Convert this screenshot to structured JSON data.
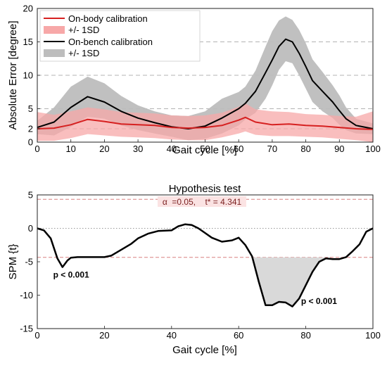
{
  "chart_data": [
    {
      "type": "line",
      "xlabel": "Gait cycle [%]",
      "ylabel": "Absolute Error [degree]",
      "xlim": [
        0,
        100
      ],
      "ylim": [
        0,
        20
      ],
      "x_ticks": [
        "0",
        "10",
        "20",
        "30",
        "40",
        "50",
        "60",
        "70",
        "80",
        "90",
        "100"
      ],
      "y_ticks": [
        "0",
        "2",
        "5",
        "10",
        "15",
        "20"
      ],
      "dashed_gridlines_y": [
        2,
        5,
        10,
        15
      ],
      "legend_placement": "top-left",
      "legend": [
        {
          "label": "On-body calibration",
          "kind": "line",
          "color": "#d62020"
        },
        {
          "label": "+/- 1SD",
          "kind": "patch",
          "color": "#f7a8a8"
        },
        {
          "label": "On-bench calibration",
          "kind": "line",
          "color": "#000000"
        },
        {
          "label": "+/- 1SD",
          "kind": "patch",
          "color": "#bdbdbd"
        }
      ],
      "series": [
        {
          "name": "On-bench calibration",
          "color": "#000000",
          "band_color": "#bdbdbd",
          "x": [
            0,
            5,
            10,
            15,
            20,
            25,
            30,
            35,
            40,
            45,
            50,
            55,
            60,
            62,
            65,
            68,
            70,
            72,
            74,
            76,
            78,
            80,
            82,
            85,
            88,
            90,
            92,
            95,
            100
          ],
          "mean": [
            2.2,
            3.0,
            5.2,
            6.8,
            6.0,
            4.6,
            3.6,
            2.9,
            2.3,
            2.0,
            2.4,
            3.6,
            5.0,
            5.8,
            7.6,
            10.4,
            12.3,
            14.3,
            15.4,
            15.0,
            13.3,
            11.3,
            9.2,
            7.6,
            6.0,
            4.7,
            3.5,
            2.5,
            2.0
          ],
          "upper": [
            3.2,
            5.2,
            8.3,
            9.8,
            8.8,
            6.9,
            5.5,
            4.6,
            4.0,
            3.9,
            4.6,
            6.5,
            7.5,
            8.3,
            10.7,
            14.3,
            16.6,
            18.2,
            18.8,
            18.3,
            16.8,
            14.8,
            12.4,
            10.5,
            8.5,
            7.0,
            5.2,
            3.5,
            2.8
          ],
          "lower": [
            1.2,
            1.0,
            2.3,
            3.8,
            3.5,
            2.5,
            1.8,
            1.3,
            0.8,
            0.3,
            0.5,
            1.3,
            2.5,
            3.4,
            4.4,
            6.5,
            8.5,
            10.8,
            12.1,
            11.8,
            10.0,
            8.0,
            6.0,
            4.6,
            3.6,
            2.6,
            1.8,
            1.3,
            1.2
          ]
        },
        {
          "name": "On-body calibration",
          "color": "#d62020",
          "band_color": "#f7a8a8",
          "x": [
            0,
            5,
            10,
            15,
            20,
            25,
            30,
            35,
            40,
            45,
            50,
            55,
            60,
            62,
            65,
            70,
            75,
            80,
            85,
            90,
            95,
            100
          ],
          "mean": [
            2.0,
            2.1,
            2.6,
            3.4,
            3.1,
            2.7,
            2.6,
            2.5,
            2.2,
            2.1,
            2.2,
            2.5,
            3.3,
            3.7,
            3.0,
            2.6,
            2.7,
            2.5,
            2.4,
            2.2,
            2.0,
            1.9
          ],
          "upper": [
            4.5,
            4.1,
            4.6,
            5.2,
            4.9,
            4.5,
            4.4,
            4.3,
            4.0,
            3.9,
            4.0,
            4.4,
            5.3,
            5.8,
            4.9,
            4.6,
            4.5,
            4.2,
            4.1,
            3.9,
            3.8,
            4.6
          ],
          "lower": [
            0.2,
            0.2,
            0.6,
            1.2,
            1.0,
            0.8,
            0.7,
            0.6,
            0.4,
            0.3,
            0.3,
            0.7,
            1.3,
            1.6,
            1.1,
            0.9,
            0.9,
            0.8,
            0.7,
            0.5,
            0.3,
            0.0
          ]
        }
      ]
    },
    {
      "type": "line",
      "title": "Hypothesis test",
      "annotation": "α  =0.05,    t* = 4.341",
      "threshold": 4.341,
      "xlabel": "Gait cycle [%]",
      "ylabel": "SPM {t}",
      "xlim": [
        0,
        100
      ],
      "ylim": [
        -15,
        5
      ],
      "x_ticks": [
        "0",
        "20",
        "40",
        "60",
        "80",
        "100"
      ],
      "y_ticks": [
        "5",
        "0",
        "-5",
        "-10",
        "-15"
      ],
      "zero_line": "dotted",
      "significance_labels": [
        {
          "text": "p < 0.001",
          "x": 8,
          "y": -6.3
        },
        {
          "text": "p < 0.001",
          "x": 81,
          "y": -10.9
        }
      ],
      "series": [
        {
          "name": "SPM {t}",
          "color": "#000000",
          "x": [
            0,
            2,
            4,
            6,
            7.5,
            9,
            10,
            12,
            15,
            20,
            22,
            25,
            28,
            30,
            33,
            36,
            40,
            42,
            44,
            46,
            48,
            50,
            52,
            55,
            58,
            60,
            62,
            64,
            66,
            68,
            70,
            72,
            74,
            76,
            78,
            80,
            82,
            84,
            86,
            88,
            90,
            92,
            94,
            96,
            98,
            100
          ],
          "y": [
            0,
            -0.3,
            -1.5,
            -4.5,
            -5.8,
            -4.8,
            -4.4,
            -4.3,
            -4.3,
            -4.3,
            -4.1,
            -3.2,
            -2.3,
            -1.5,
            -0.8,
            -0.4,
            -0.3,
            0.3,
            0.6,
            0.5,
            0.0,
            -0.7,
            -1.4,
            -2.0,
            -1.8,
            -1.4,
            -2.5,
            -4.2,
            -8.0,
            -11.5,
            -11.5,
            -11.0,
            -11.1,
            -11.7,
            -10.5,
            -8.5,
            -6.5,
            -5.0,
            -4.5,
            -4.6,
            -4.6,
            -4.3,
            -3.4,
            -2.4,
            -0.5,
            0.0
          ],
          "shaded_clusters": [
            [
              64,
              86
            ]
          ]
        }
      ]
    }
  ]
}
